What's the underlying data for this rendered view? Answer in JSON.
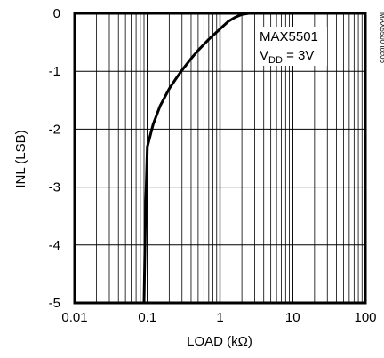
{
  "chart_data": {
    "type": "line",
    "title": "",
    "xlabel": "LOAD (kΩ)",
    "ylabel": "INL (LSB)",
    "xscale": "log",
    "xlim": [
      0.01,
      100
    ],
    "ylim": [
      -5,
      0
    ],
    "grid": true,
    "x_ticks": [
      {
        "value": 0.01,
        "label": "0.01"
      },
      {
        "value": 0.1,
        "label": "0.1"
      },
      {
        "value": 1,
        "label": "1"
      },
      {
        "value": 10,
        "label": "10"
      },
      {
        "value": 100,
        "label": "100"
      }
    ],
    "y_ticks": [
      {
        "value": 0,
        "label": "0"
      },
      {
        "value": -1,
        "label": "-1"
      },
      {
        "value": -2,
        "label": "-2"
      },
      {
        "value": -3,
        "label": "-3"
      },
      {
        "value": -4,
        "label": "-4"
      },
      {
        "value": -5,
        "label": "-5"
      }
    ],
    "annotation": {
      "line1": "MAX5501",
      "line2_main": "V",
      "line2_sub": "DD",
      "line2_rest": " = 3V"
    },
    "figure_id": "MAX5500 toc06",
    "series": [
      {
        "x": [
          0.09,
          0.095,
          0.1,
          0.12,
          0.15,
          0.2,
          0.25,
          0.3,
          0.4,
          0.5,
          0.7,
          1,
          1.3,
          1.6,
          2,
          2.5,
          3,
          4,
          5,
          7,
          10,
          20,
          50,
          100
        ],
        "y": [
          -5,
          -3.3,
          -2.3,
          -1.92,
          -1.6,
          -1.3,
          -1.12,
          -0.98,
          -0.78,
          -0.64,
          -0.45,
          -0.27,
          -0.14,
          -0.07,
          -0.02,
          0,
          0,
          0,
          0,
          0,
          0,
          0,
          0,
          0
        ]
      }
    ]
  }
}
